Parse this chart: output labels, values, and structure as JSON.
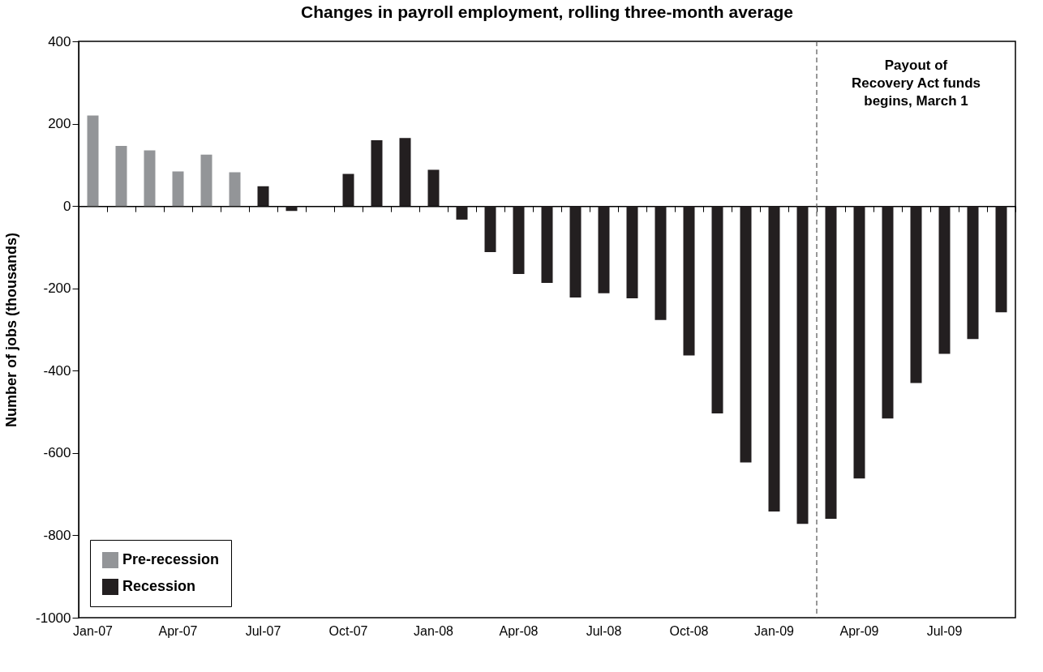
{
  "chart_data": {
    "type": "bar",
    "title": "Changes in payroll employment, rolling three-month average",
    "ylabel": "Number of jobs (thousands)",
    "categories": [
      "Jan-07",
      null,
      null,
      "Apr-07",
      null,
      null,
      "Jul-07",
      null,
      null,
      "Oct-07",
      null,
      null,
      "Jan-08",
      null,
      null,
      "Apr-08",
      null,
      null,
      "Jul-08",
      null,
      null,
      "Oct-08",
      null,
      null,
      "Jan-09",
      null,
      null,
      "Apr-09",
      null,
      null,
      "Jul-09",
      null,
      null
    ],
    "series": [
      {
        "name": "Pre-recession",
        "color": "#939598",
        "values": [
          220,
          146,
          135,
          84,
          125,
          82,
          null,
          null,
          null,
          null,
          null,
          null,
          null,
          null,
          null,
          null,
          null,
          null,
          null,
          null,
          null,
          null,
          null,
          null,
          null,
          null,
          null,
          null,
          null,
          null,
          null,
          null,
          null
        ]
      },
      {
        "name": "Recession",
        "color": "#231f20",
        "values": [
          null,
          null,
          null,
          null,
          null,
          null,
          48,
          -12,
          0,
          78,
          160,
          165,
          88,
          -33,
          -112,
          -165,
          -187,
          -222,
          -212,
          -224,
          -277,
          -363,
          -504,
          -623,
          -742,
          -772,
          -760,
          -662,
          -516,
          -430,
          -359,
          -323,
          -258
        ]
      }
    ],
    "ylim": [
      -1000,
      400
    ],
    "yticks": [
      {
        "value": -1000,
        "label": "-1000"
      },
      {
        "value": -800,
        "label": "-800"
      },
      {
        "value": -600,
        "label": "-600"
      },
      {
        "value": -400,
        "label": "-400"
      },
      {
        "value": -200,
        "label": "-200"
      },
      0,
      200,
      400
    ],
    "grid": false,
    "legend": "bottom left",
    "annotations": [
      "Payout of\nRecovery Act funds\nbegins, March 1"
    ]
  }
}
